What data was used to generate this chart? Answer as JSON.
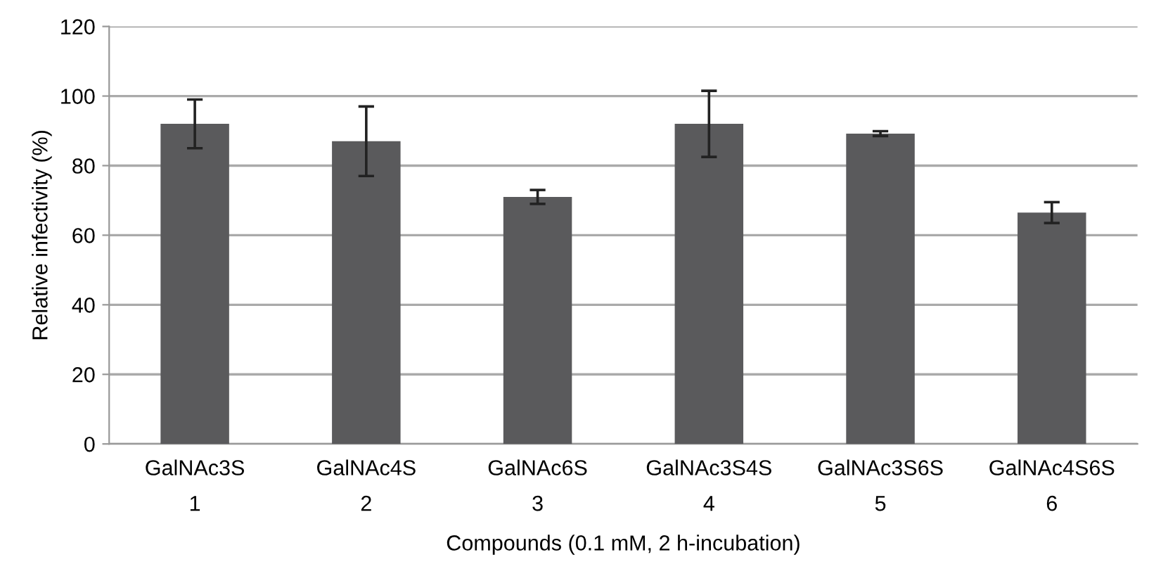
{
  "chart_data": {
    "type": "bar",
    "xlabel": "Compounds (0.1 mM, 2 h-incubation)",
    "ylabel": "Relative infectivity (%)",
    "categories": [
      "GalNAc3S\n1",
      "GalNAc4S\n2",
      "GalNAc6S\n3",
      "GalNAc3S4S\n4",
      "GalNAc3S6S\n5",
      "GalNAc4S6S\n6"
    ],
    "values": [
      92,
      87,
      71,
      92,
      89.2,
      66.5
    ],
    "errors": [
      7,
      10,
      2,
      9.5,
      0.7,
      3
    ],
    "color": "#5a5a5c",
    "ylim": [
      0,
      120
    ],
    "yticks": [
      0,
      20,
      40,
      60,
      80,
      100,
      120
    ],
    "grid": "y"
  }
}
